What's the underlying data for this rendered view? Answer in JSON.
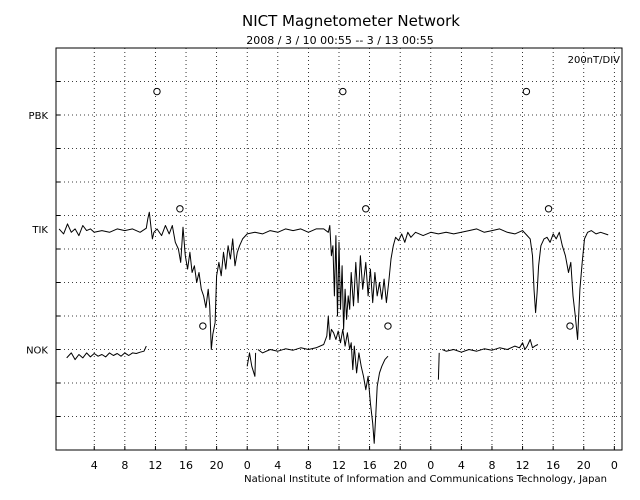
{
  "chart_data": {
    "type": "line",
    "title": "NICT Magnetometer Network",
    "subtitle": "2008 / 3 / 10   00:55 --  3 / 13  00:55",
    "scale_label": "200nT/DIV",
    "footer": "National Institute of Information and Communications Technology, Japan",
    "x_tick_labels": [
      "4",
      "8",
      "12",
      "16",
      "20",
      "0",
      "4",
      "8",
      "12",
      "16",
      "20",
      "0",
      "4",
      "8",
      "12",
      "16",
      "20",
      "0"
    ],
    "x_tick_hours": [
      4,
      8,
      12,
      16,
      20,
      24,
      28,
      32,
      36,
      40,
      44,
      48,
      52,
      56,
      60,
      64,
      68,
      72
    ],
    "xlim_hours": [
      -1,
      73
    ],
    "ylim_div": [
      0,
      12
    ],
    "grid": true,
    "marker_hours": [
      12,
      36,
      60
    ],
    "series": [
      {
        "name": "PBK",
        "base_div": 10,
        "values": [],
        "markers": [
          [
            12.2,
            10.7
          ],
          [
            36.5,
            10.7
          ],
          [
            60.5,
            10.7
          ]
        ]
      },
      {
        "name": "TIK",
        "base_div": 6.6,
        "markers": [
          [
            15.2,
            7.2
          ],
          [
            39.5,
            7.2
          ],
          [
            63.4,
            7.2
          ]
        ],
        "values": [
          [
            -0.6,
            6.6
          ],
          [
            0,
            6.45
          ],
          [
            0.5,
            6.75
          ],
          [
            1,
            6.5
          ],
          [
            1.5,
            6.6
          ],
          [
            2,
            6.4
          ],
          [
            2.5,
            6.7
          ],
          [
            3,
            6.55
          ],
          [
            3.5,
            6.6
          ],
          [
            4,
            6.5
          ],
          [
            5,
            6.55
          ],
          [
            6,
            6.5
          ],
          [
            7,
            6.6
          ],
          [
            8,
            6.55
          ],
          [
            9,
            6.6
          ],
          [
            10,
            6.5
          ],
          [
            10.8,
            6.62
          ],
          [
            11,
            6.9
          ],
          [
            11.2,
            7.1
          ],
          [
            11.4,
            6.7
          ],
          [
            11.6,
            6.3
          ],
          [
            11.8,
            6.5
          ],
          [
            12.2,
            6.6
          ],
          [
            12.8,
            6.4
          ],
          [
            13.3,
            6.7
          ],
          [
            13.8,
            6.45
          ],
          [
            14.2,
            6.7
          ],
          [
            14.6,
            6.2
          ],
          [
            15,
            6.0
          ],
          [
            15.3,
            5.6
          ],
          [
            15.6,
            6.65
          ],
          [
            15.9,
            5.8
          ],
          [
            16.2,
            5.4
          ],
          [
            16.5,
            5.9
          ],
          [
            16.8,
            5.3
          ],
          [
            17.1,
            5.5
          ],
          [
            17.4,
            5.0
          ],
          [
            17.7,
            5.3
          ],
          [
            18,
            4.8
          ],
          [
            18.3,
            4.6
          ],
          [
            18.6,
            4.25
          ],
          [
            18.9,
            4.8
          ],
          [
            19.1,
            4.3
          ],
          [
            19.3,
            3.0
          ],
          [
            19.5,
            3.45
          ],
          [
            19.8,
            3.8
          ],
          [
            20,
            5.2
          ],
          [
            20.3,
            5.6
          ],
          [
            20.6,
            5.2
          ],
          [
            20.9,
            5.9
          ],
          [
            21.2,
            5.4
          ],
          [
            21.5,
            6.1
          ],
          [
            21.8,
            5.7
          ],
          [
            22.1,
            6.3
          ],
          [
            22.4,
            5.5
          ],
          [
            22.7,
            5.9
          ],
          [
            23,
            6.1
          ],
          [
            23.4,
            6.3
          ],
          [
            24,
            6.45
          ],
          [
            25,
            6.5
          ],
          [
            26,
            6.45
          ],
          [
            27,
            6.55
          ],
          [
            28,
            6.5
          ],
          [
            29,
            6.6
          ],
          [
            30,
            6.55
          ],
          [
            31,
            6.6
          ],
          [
            32,
            6.5
          ],
          [
            33,
            6.6
          ],
          [
            34,
            6.6
          ],
          [
            34.6,
            6.5
          ],
          [
            34.8,
            6.7
          ],
          [
            35,
            5.8
          ],
          [
            35.2,
            6.1
          ],
          [
            35.4,
            4.6
          ],
          [
            35.6,
            6.4
          ],
          [
            35.8,
            4.0
          ],
          [
            36,
            6.2
          ],
          [
            36.2,
            4.2
          ],
          [
            36.4,
            5.5
          ],
          [
            36.6,
            3.6
          ],
          [
            36.8,
            4.8
          ],
          [
            37,
            3.9
          ],
          [
            37.2,
            4.6
          ],
          [
            37.4,
            4.2
          ],
          [
            37.6,
            5.3
          ],
          [
            37.9,
            4.3
          ],
          [
            38.2,
            5.6
          ],
          [
            38.5,
            4.4
          ],
          [
            38.8,
            5.8
          ],
          [
            39.1,
            4.8
          ],
          [
            39.5,
            5.6
          ],
          [
            39.8,
            4.6
          ],
          [
            40.1,
            5.4
          ],
          [
            40.4,
            4.4
          ],
          [
            40.7,
            5.3
          ],
          [
            41,
            4.6
          ],
          [
            41.3,
            5.0
          ],
          [
            41.6,
            4.5
          ],
          [
            41.9,
            5.1
          ],
          [
            42.2,
            4.4
          ],
          [
            42.5,
            5.0
          ],
          [
            42.8,
            5.7
          ],
          [
            43.1,
            6.1
          ],
          [
            43.4,
            6.35
          ],
          [
            43.8,
            6.25
          ],
          [
            44.2,
            6.45
          ],
          [
            44.6,
            6.2
          ],
          [
            45,
            6.5
          ],
          [
            45.4,
            6.35
          ],
          [
            46,
            6.5
          ],
          [
            47,
            6.4
          ],
          [
            48,
            6.5
          ],
          [
            49,
            6.45
          ],
          [
            50,
            6.5
          ],
          [
            51,
            6.45
          ],
          [
            52,
            6.5
          ],
          [
            53,
            6.55
          ],
          [
            54,
            6.6
          ],
          [
            55,
            6.5
          ],
          [
            56,
            6.55
          ],
          [
            57,
            6.6
          ],
          [
            58,
            6.5
          ],
          [
            59,
            6.45
          ],
          [
            60,
            6.55
          ],
          [
            60.6,
            6.4
          ],
          [
            61,
            6.3
          ],
          [
            61.3,
            5.8
          ],
          [
            61.5,
            4.8
          ],
          [
            61.7,
            4.1
          ],
          [
            61.9,
            4.7
          ],
          [
            62.1,
            5.5
          ],
          [
            62.4,
            6.1
          ],
          [
            62.8,
            6.3
          ],
          [
            63.2,
            6.35
          ],
          [
            63.6,
            6.2
          ],
          [
            64,
            6.45
          ],
          [
            64.4,
            6.3
          ],
          [
            64.8,
            6.5
          ],
          [
            65.2,
            6.1
          ],
          [
            65.6,
            5.8
          ],
          [
            66,
            5.3
          ],
          [
            66.3,
            5.6
          ],
          [
            66.6,
            4.6
          ],
          [
            66.9,
            4.0
          ],
          [
            67.2,
            3.3
          ],
          [
            67.5,
            4.8
          ],
          [
            67.8,
            5.6
          ],
          [
            68.1,
            6.3
          ],
          [
            68.5,
            6.5
          ],
          [
            69,
            6.55
          ],
          [
            69.6,
            6.45
          ],
          [
            70.2,
            6.5
          ],
          [
            71.2,
            6.42
          ]
        ]
      },
      {
        "name": "NOK",
        "base_div": 3.0,
        "markers": [
          [
            18.2,
            3.7
          ],
          [
            42.4,
            3.7
          ],
          [
            66.2,
            3.7
          ]
        ],
        "segments": [
          [
            [
              0.4,
              2.75
            ],
            [
              1,
              2.9
            ],
            [
              1.5,
              2.7
            ],
            [
              2,
              2.85
            ],
            [
              2.5,
              2.75
            ],
            [
              3,
              2.9
            ],
            [
              3.5,
              2.78
            ],
            [
              4,
              2.88
            ],
            [
              4.5,
              2.8
            ],
            [
              5,
              2.85
            ],
            [
              5.5,
              2.78
            ],
            [
              6,
              2.9
            ],
            [
              6.5,
              2.82
            ],
            [
              7,
              2.88
            ],
            [
              7.5,
              2.8
            ],
            [
              8,
              2.9
            ],
            [
              8.5,
              2.82
            ],
            [
              9,
              2.9
            ],
            [
              9.5,
              2.88
            ],
            [
              10,
              2.92
            ],
            [
              10.5,
              2.95
            ],
            [
              10.8,
              3.1
            ]
          ],
          [
            [
              24.0,
              2.5
            ],
            [
              24.3,
              2.9
            ],
            [
              24.6,
              2.5
            ],
            [
              25,
              2.2
            ],
            [
              25.1,
              2.9
            ]
          ],
          [
            [
              25.4,
              3.0
            ],
            [
              26,
              2.9
            ],
            [
              27,
              3.0
            ],
            [
              28,
              2.95
            ],
            [
              29,
              3.02
            ],
            [
              30,
              2.98
            ],
            [
              31,
              3.05
            ],
            [
              32,
              3.0
            ],
            [
              33,
              3.05
            ],
            [
              34,
              3.15
            ],
            [
              34.4,
              3.4
            ],
            [
              34.6,
              4.0
            ],
            [
              34.8,
              3.3
            ],
            [
              35,
              3.6
            ],
            [
              35.3,
              3.5
            ],
            [
              35.6,
              3.3
            ],
            [
              35.9,
              3.55
            ],
            [
              36.2,
              3.2
            ],
            [
              36.5,
              3.6
            ],
            [
              36.8,
              3.1
            ],
            [
              37.1,
              3.5
            ],
            [
              37.4,
              3.0
            ],
            [
              37.6,
              3.2
            ],
            [
              37.8,
              2.4
            ],
            [
              38,
              3.1
            ],
            [
              38.3,
              2.3
            ],
            [
              38.6,
              2.9
            ],
            [
              38.9,
              2.5
            ],
            [
              39.2,
              2.2
            ],
            [
              39.5,
              1.8
            ],
            [
              39.8,
              2.2
            ],
            [
              40.1,
              1.4
            ],
            [
              40.4,
              0.8
            ],
            [
              40.6,
              0.2
            ],
            [
              40.8,
              1.0
            ],
            [
              41,
              1.9
            ],
            [
              41.3,
              2.3
            ],
            [
              41.6,
              2.5
            ],
            [
              42,
              2.7
            ],
            [
              42.4,
              2.8
            ]
          ],
          [
            [
              49.0,
              2.1
            ],
            [
              49.1,
              2.9
            ]
          ],
          [
            [
              49.5,
              3.0
            ],
            [
              50,
              2.95
            ],
            [
              51,
              3.0
            ],
            [
              52,
              2.92
            ],
            [
              53,
              3.0
            ],
            [
              54,
              2.95
            ],
            [
              55,
              3.02
            ],
            [
              56,
              2.98
            ],
            [
              57,
              3.05
            ],
            [
              58,
              3.0
            ],
            [
              59,
              3.1
            ],
            [
              59.6,
              3.05
            ],
            [
              60,
              3.2
            ],
            [
              60.3,
              3.0
            ],
            [
              60.6,
              3.1
            ],
            [
              61,
              3.3
            ],
            [
              61.3,
              3.05
            ],
            [
              61.6,
              3.1
            ],
            [
              62,
              3.15
            ]
          ]
        ]
      }
    ]
  }
}
